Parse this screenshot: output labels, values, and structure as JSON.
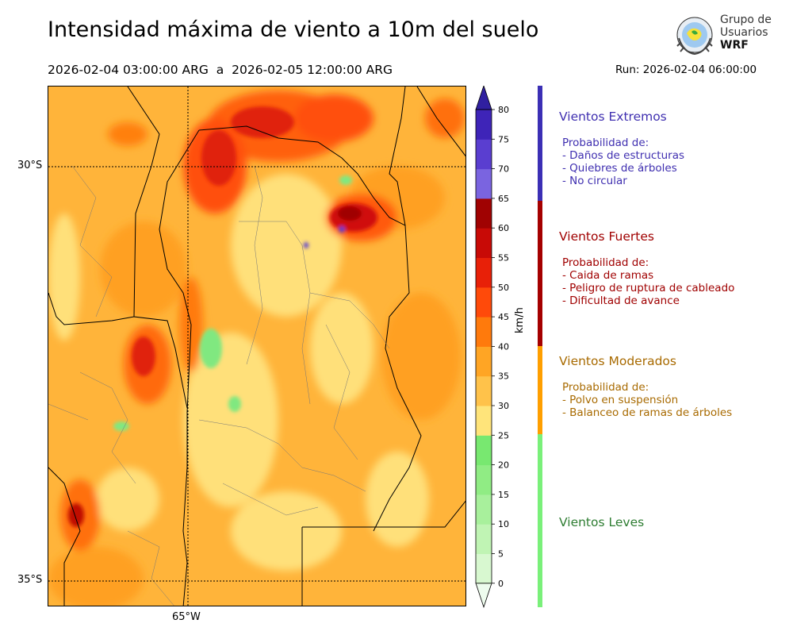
{
  "header": {
    "title": "Intensidad máxima de viento a 10m del suelo",
    "period": "2026-02-04 03:00:00 ARG  a  2026-02-05 12:00:00 ARG",
    "run": "Run: 2026-02-04 06:00:00"
  },
  "logo": {
    "line1": "Grupo de",
    "line2": "Usuarios",
    "line3": "WRF",
    "icon": "globe-emblem-icon"
  },
  "map": {
    "lat_labels": [
      "30°S",
      "35°S"
    ],
    "lon_labels": [
      "65°W"
    ],
    "graticule_lines": [
      "30°S",
      "35°S",
      "65°W"
    ]
  },
  "colorbar": {
    "unit": "km/h",
    "ticks": [
      "0",
      "5",
      "10",
      "15",
      "20",
      "25",
      "30",
      "35",
      "40",
      "45",
      "50",
      "55",
      "60",
      "65",
      "70",
      "75",
      "80"
    ],
    "colors": [
      "#eefcee",
      "#d8f8d0",
      "#c0f4b4",
      "#a8f09c",
      "#90ec84",
      "#78e870",
      "#ffe47a",
      "#ffc24a",
      "#ffa524",
      "#ff7a0c",
      "#ff4a0a",
      "#e82008",
      "#c80a06",
      "#a00202",
      "#7a64e0",
      "#5a3ed0",
      "#3e24b8",
      "#3020a0"
    ]
  },
  "categories": [
    {
      "title": "Vientos Extremos",
      "color": "#3f2fb0",
      "bar_color": "#3b2fb5",
      "lines": [
        "Probabilidad de:",
        "- Daños de estructuras",
        "- Quiebres de árboles",
        "- No circular"
      ]
    },
    {
      "title": "Vientos Fuertes",
      "color": "#a00000",
      "bar_color": "#a50000",
      "lines": [
        "Probabilidad de:",
        "- Caida de ramas",
        "- Peligro de ruptura de cableado",
        "- Dificultad de avance"
      ]
    },
    {
      "title": "Vientos Moderados",
      "color": "#a86a00",
      "bar_color": "#ff9f00",
      "lines": [
        "Probabilidad de:",
        "- Polvo en suspensión",
        "- Balanceo de ramas de árboles"
      ]
    },
    {
      "title": "Vientos Leves",
      "color": "#2e7d32",
      "bar_color": "#7af07a",
      "lines": []
    }
  ]
}
